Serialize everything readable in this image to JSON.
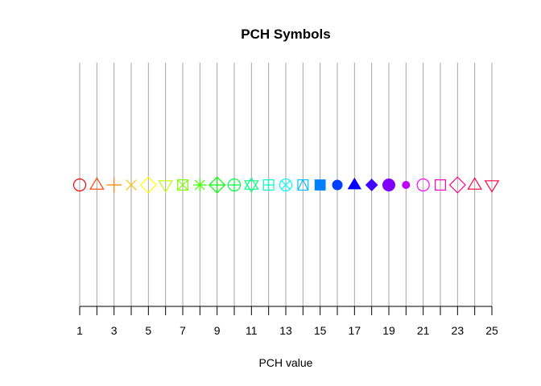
{
  "chart_data": {
    "type": "scatter",
    "title": "PCH Symbols",
    "xlabel": "PCH value",
    "ylabel": "",
    "xlim": [
      1,
      25
    ],
    "x_ticks": [
      1,
      3,
      5,
      7,
      9,
      11,
      13,
      15,
      17,
      19,
      21,
      23,
      25
    ],
    "x_minor_ticks": [
      1,
      2,
      3,
      4,
      5,
      6,
      7,
      8,
      9,
      10,
      11,
      12,
      13,
      14,
      15,
      16,
      17,
      18,
      19,
      20,
      21,
      22,
      23,
      24,
      25
    ],
    "grid": "vertical gray lines at every integer x",
    "y_value": 0,
    "points": [
      {
        "x": 1,
        "pch": 1,
        "color": "#FF0000"
      },
      {
        "x": 2,
        "pch": 2,
        "color": "#FF3F00"
      },
      {
        "x": 3,
        "pch": 3,
        "color": "#FF7F00"
      },
      {
        "x": 4,
        "pch": 4,
        "color": "#FFBF00"
      },
      {
        "x": 5,
        "pch": 5,
        "color": "#FFFF00"
      },
      {
        "x": 6,
        "pch": 6,
        "color": "#BFFF00"
      },
      {
        "x": 7,
        "pch": 7,
        "color": "#7FFF00"
      },
      {
        "x": 8,
        "pch": 8,
        "color": "#3FFF00"
      },
      {
        "x": 9,
        "pch": 9,
        "color": "#00FF00"
      },
      {
        "x": 10,
        "pch": 10,
        "color": "#00FF3F"
      },
      {
        "x": 11,
        "pch": 11,
        "color": "#00FF7F"
      },
      {
        "x": 12,
        "pch": 12,
        "color": "#00FFBF"
      },
      {
        "x": 13,
        "pch": 13,
        "color": "#00FFFF"
      },
      {
        "x": 14,
        "pch": 14,
        "color": "#00BFFF"
      },
      {
        "x": 15,
        "pch": 15,
        "color": "#007FFF"
      },
      {
        "x": 16,
        "pch": 16,
        "color": "#003FFF"
      },
      {
        "x": 17,
        "pch": 17,
        "color": "#0000FF"
      },
      {
        "x": 18,
        "pch": 18,
        "color": "#3F00FF"
      },
      {
        "x": 19,
        "pch": 19,
        "color": "#7F00FF"
      },
      {
        "x": 20,
        "pch": 20,
        "color": "#BF00FF"
      },
      {
        "x": 21,
        "pch": 21,
        "color": "#FF00FF"
      },
      {
        "x": 22,
        "pch": 22,
        "color": "#FF00BF"
      },
      {
        "x": 23,
        "pch": 23,
        "color": "#FF007F"
      },
      {
        "x": 24,
        "pch": 24,
        "color": "#FF003F"
      },
      {
        "x": 25,
        "pch": 25,
        "color": "#FF0040"
      }
    ]
  }
}
